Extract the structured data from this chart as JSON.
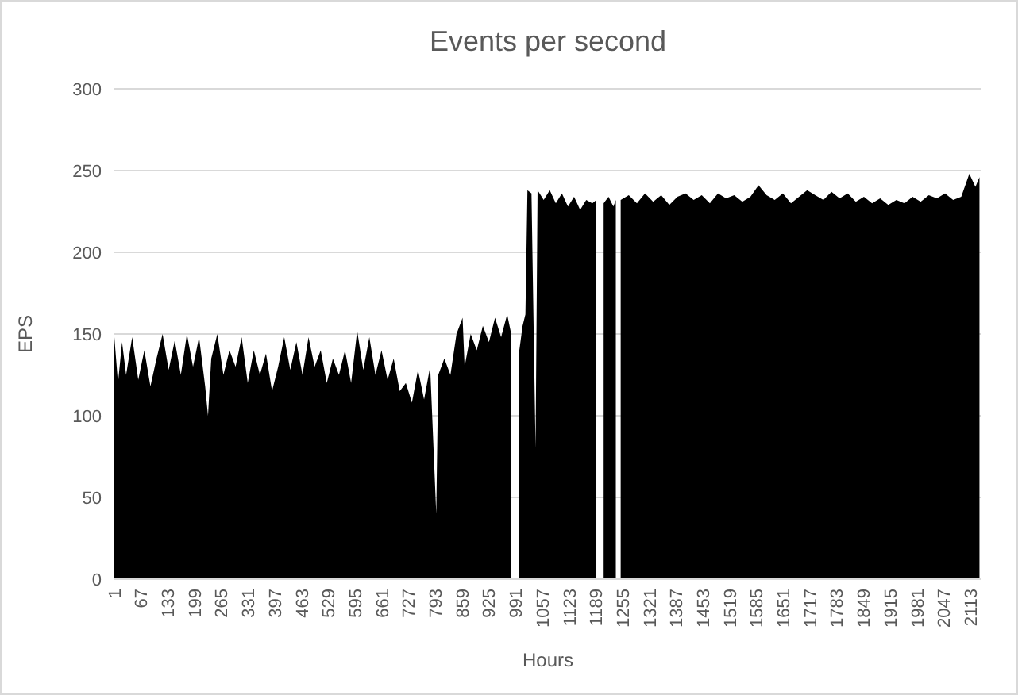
{
  "chart_data": {
    "type": "area",
    "title": "Events per second",
    "xlabel": "Hours",
    "ylabel": "EPS",
    "xlim": [
      1,
      2140
    ],
    "xticks": [
      1,
      67,
      133,
      199,
      265,
      331,
      397,
      463,
      529,
      595,
      661,
      727,
      793,
      859,
      925,
      991,
      1057,
      1123,
      1189,
      1255,
      1321,
      1387,
      1453,
      1519,
      1585,
      1651,
      1717,
      1783,
      1849,
      1915,
      1981,
      2047,
      2113
    ],
    "ylim": [
      0,
      300
    ],
    "yticks": [
      0,
      50,
      100,
      150,
      200,
      250,
      300
    ],
    "grid": "y",
    "series": [
      {
        "color": "#000000",
        "x": [
          1,
          10,
          20,
          30,
          45,
          60,
          75,
          90,
          105,
          120,
          135,
          150,
          165,
          180,
          195,
          210,
          225,
          232,
          240,
          255,
          270,
          285,
          300,
          315,
          330,
          345,
          360,
          375,
          390,
          405,
          420,
          435,
          450,
          465,
          480,
          495,
          510,
          525,
          540,
          555,
          570,
          585,
          600,
          615,
          630,
          645,
          660,
          675,
          690,
          705,
          720,
          735,
          750,
          765,
          780,
          795,
          800,
          815,
          830,
          845,
          860,
          865,
          880,
          895,
          910,
          925,
          940,
          955,
          970,
          980,
          985,
          1000,
          1008,
          1015,
          1020,
          1030,
          1040,
          1045,
          1060,
          1075,
          1090,
          1105,
          1120,
          1135,
          1150,
          1165,
          1180,
          1190,
          1198,
          1208,
          1220,
          1232,
          1238,
          1242,
          1250,
          1270,
          1290,
          1310,
          1330,
          1350,
          1370,
          1390,
          1410,
          1430,
          1450,
          1470,
          1490,
          1510,
          1530,
          1550,
          1570,
          1590,
          1610,
          1630,
          1650,
          1670,
          1690,
          1710,
          1730,
          1750,
          1770,
          1790,
          1810,
          1830,
          1850,
          1870,
          1890,
          1910,
          1930,
          1950,
          1970,
          1990,
          2010,
          2030,
          2050,
          2070,
          2090,
          2110,
          2125,
          2135
        ],
        "values": [
          148,
          120,
          145,
          125,
          148,
          122,
          140,
          118,
          135,
          150,
          128,
          146,
          125,
          150,
          130,
          148,
          118,
          100,
          135,
          150,
          125,
          140,
          130,
          148,
          120,
          140,
          125,
          138,
          115,
          130,
          148,
          128,
          145,
          125,
          148,
          130,
          140,
          120,
          135,
          125,
          140,
          120,
          152,
          128,
          148,
          125,
          140,
          122,
          135,
          115,
          120,
          108,
          128,
          110,
          130,
          40,
          125,
          135,
          125,
          150,
          160,
          130,
          150,
          140,
          155,
          145,
          160,
          148,
          162,
          150,
          null,
          140,
          155,
          162,
          238,
          236,
          80,
          238,
          232,
          238,
          230,
          236,
          228,
          234,
          226,
          232,
          230,
          232,
          null,
          230,
          234,
          228,
          232,
          null,
          232,
          235,
          230,
          236,
          231,
          235,
          229,
          234,
          236,
          232,
          235,
          230,
          236,
          233,
          235,
          231,
          234,
          241,
          235,
          232,
          236,
          230,
          234,
          238,
          235,
          232,
          237,
          233,
          236,
          231,
          234,
          230,
          233,
          229,
          232,
          230,
          234,
          231,
          235,
          233,
          236,
          232,
          234,
          248,
          240,
          246
        ]
      }
    ]
  }
}
